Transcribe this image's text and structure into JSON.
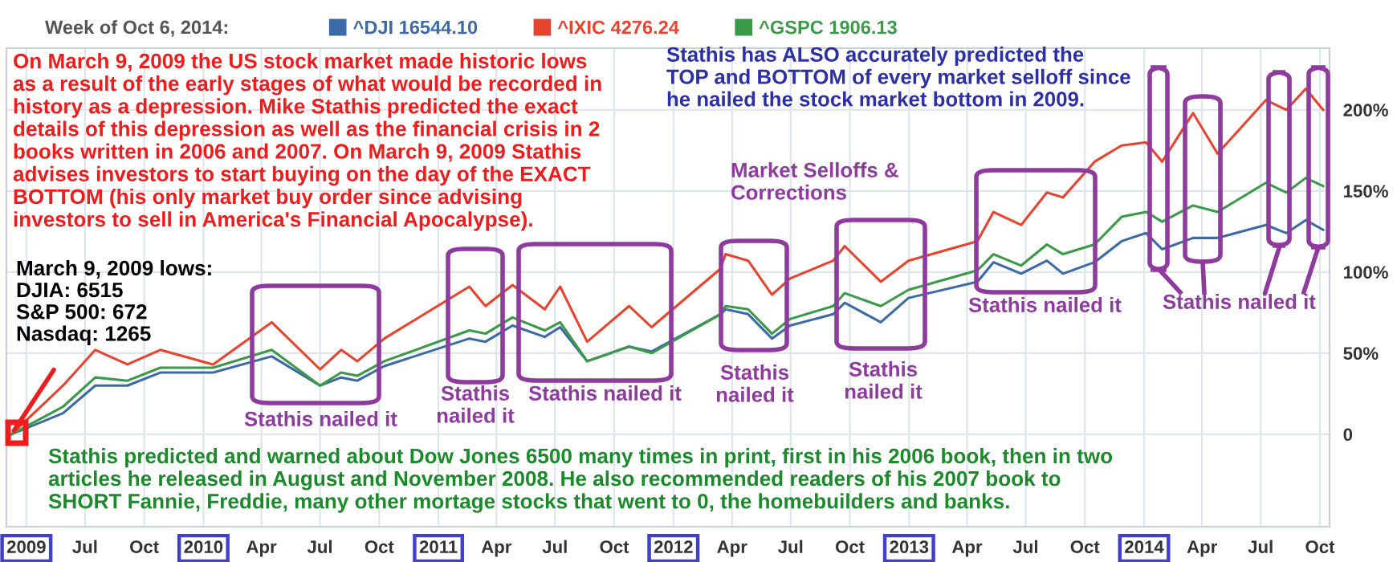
{
  "chart_data": {
    "type": "line",
    "legend_title": "Week of Oct 6, 2014:",
    "legend": "top",
    "grid": true,
    "marker": "none",
    "line_style": "solid",
    "x": [
      "2009-03-09",
      "2009-05-28",
      "2009-07-17",
      "2009-09-05",
      "2009-10-26",
      "2010-01-16",
      "2010-04-17",
      "2010-07-01",
      "2010-08-03",
      "2010-08-28",
      "2010-10-09",
      "2011-02-18",
      "2011-03-15",
      "2011-04-26",
      "2011-06-15",
      "2011-07-09",
      "2011-08-20",
      "2011-10-24",
      "2011-11-28",
      "2012-03-14",
      "2012-03-22",
      "2012-04-26",
      "2012-06-02",
      "2012-06-30",
      "2012-09-05",
      "2012-09-23",
      "2012-11-18",
      "2012-12-31",
      "2013-04-17",
      "2013-05-12",
      "2013-06-24",
      "2013-08-03",
      "2013-08-28",
      "2013-10-16",
      "2013-11-27",
      "2014-01-04",
      "2014-01-29",
      "2014-03-18",
      "2014-04-25",
      "2014-07-09",
      "2014-08-10",
      "2014-09-09",
      "2014-10-06"
    ],
    "series": [
      {
        "name": "^DJI 16544.10",
        "color": "#3c6aa8",
        "values": [
          0,
          13,
          30,
          30,
          38,
          38,
          48,
          30,
          35,
          33,
          42,
          59,
          57,
          67,
          60,
          66,
          45,
          54,
          51,
          74,
          77,
          74,
          59,
          67,
          74,
          81,
          69,
          84,
          94,
          106,
          99,
          107,
          99,
          106,
          119,
          124,
          114,
          121,
          121,
          129,
          124,
          132,
          126
        ]
      },
      {
        "name": "^IXIC 4276.24",
        "color": "#e8432e",
        "values": [
          0,
          30,
          52,
          43,
          52,
          43,
          69,
          40,
          52,
          45,
          59,
          91,
          79,
          92,
          77,
          91,
          57,
          79,
          66,
          102,
          111,
          107,
          86,
          96,
          107,
          116,
          94,
          107,
          119,
          137,
          129,
          149,
          146,
          168,
          178,
          180,
          168,
          198,
          173,
          206,
          200,
          213,
          200
        ]
      },
      {
        "name": "^GSPC 1906.13",
        "color": "#3a9a48",
        "values": [
          0,
          17,
          35,
          33,
          41,
          41,
          52,
          30,
          38,
          36,
          45,
          64,
          62,
          72,
          64,
          69,
          45,
          54,
          50,
          74,
          79,
          77,
          62,
          71,
          79,
          87,
          79,
          89,
          101,
          111,
          104,
          117,
          111,
          117,
          134,
          137,
          131,
          141,
          137,
          155,
          149,
          158,
          153
        ]
      }
    ],
    "xlim": [
      "2009-03-01",
      "2014-10-16"
    ],
    "xticks": [
      {
        "value": "2009-04-01",
        "label": "2009"
      },
      {
        "value": "2009-07-01",
        "label": "Jul"
      },
      {
        "value": "2009-10-01",
        "label": "Oct"
      },
      {
        "value": "2010-01-01",
        "label": "2010"
      },
      {
        "value": "2010-04-01",
        "label": "Apr"
      },
      {
        "value": "2010-07-01",
        "label": "Jul"
      },
      {
        "value": "2010-10-01",
        "label": "Oct"
      },
      {
        "value": "2011-01-01",
        "label": "2011"
      },
      {
        "value": "2011-04-01",
        "label": "Apr"
      },
      {
        "value": "2011-07-01",
        "label": "Jul"
      },
      {
        "value": "2011-10-01",
        "label": "Oct"
      },
      {
        "value": "2012-01-01",
        "label": "2012"
      },
      {
        "value": "2012-04-01",
        "label": "Apr"
      },
      {
        "value": "2012-07-01",
        "label": "Jul"
      },
      {
        "value": "2012-10-01",
        "label": "Oct"
      },
      {
        "value": "2013-01-01",
        "label": "2013"
      },
      {
        "value": "2013-04-01",
        "label": "Apr"
      },
      {
        "value": "2013-07-01",
        "label": "Jul"
      },
      {
        "value": "2013-10-01",
        "label": "Oct"
      },
      {
        "value": "2014-01-01",
        "label": "2014"
      },
      {
        "value": "2014-04-01",
        "label": "Apr"
      },
      {
        "value": "2014-07-01",
        "label": "Jul"
      },
      {
        "value": "2014-10-01",
        "label": "Oct"
      }
    ],
    "ylim": [
      -57,
      238
    ],
    "yticks": [
      0,
      {
        "value": 50,
        "label": "50%"
      },
      {
        "value": 100,
        "label": "100%"
      },
      {
        "value": 150,
        "label": "150%"
      },
      {
        "value": 200,
        "label": "200%"
      }
    ],
    "annotations": [
      "On March 9, 2009 the US stock market made historic lows\nas a result of the early stages of what would be recorded in\nhistory as a depression. Mike Stathis predicted the exact\ndetails of this depression as well as the financial crisis in 2\nbooks written in 2006 and 2007. On March 9, 2009 Stathis\nadvises investors to start buying on the day of the EXACT\nBOTTOM (his only market buy order since advising\ninvestors to sell in America's Financial Apocalypse).",
      "Stathis has ALSO accurately predicted the\nTOP and BOTTOM of every market selloff since\nhe nailed the stock market bottom in 2009.",
      {
        "text": "March 9, 2009 lows:\nDJIA: 6515\nS&P 500: 672\nNasdaq: 1265",
        "x": "2009-03-09",
        "y": 0
      },
      "Market Selloffs &\nCorrections",
      "Stathis nailed it",
      "Stathis\nnailed it",
      "Stathis nailed it",
      "Stathis\nnailed it",
      "Stathis\nnailed it",
      "Stathis nailed it",
      "Stathis nailed it",
      "Stathis predicted and warned about Dow Jones 6500 many times in print, first in his 2006 book, then in two\narticles he released in August and November 2008. He also recommended readers of his 2007 book to\nSHORT Fannie, Freddie, many other mortage stocks that went to 0, the homebuilders and banks."
    ]
  }
}
